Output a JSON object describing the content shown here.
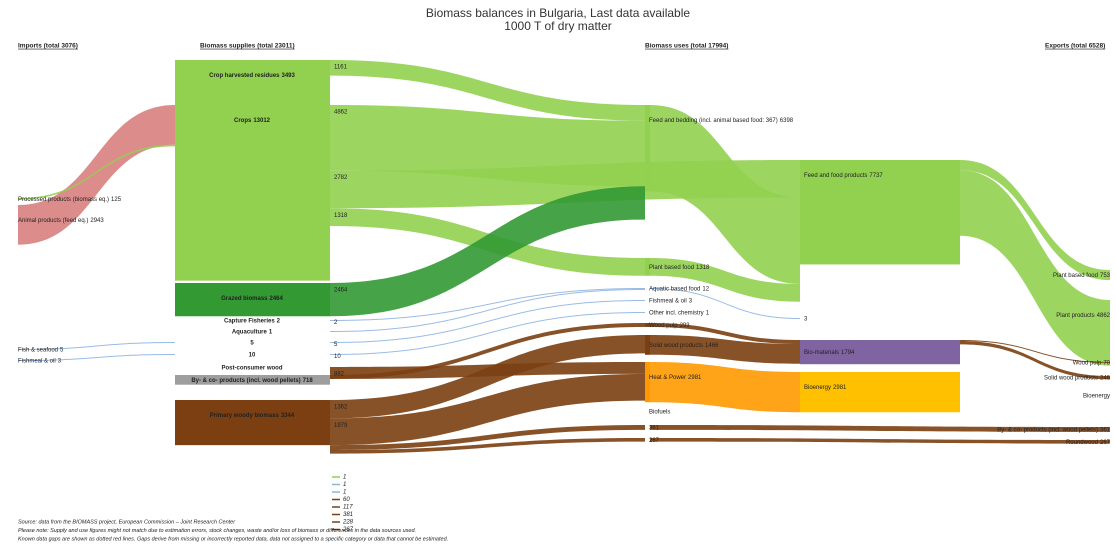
{
  "chart_data": {
    "type": "sankey",
    "title": "Biomass balances in Bulgaria, Last data available",
    "subtitle": "1000 T of dry matter",
    "columns": [
      {
        "header": "Imports (total 3076)",
        "nodes": [
          {
            "name": "Processed products (biomass eq.)",
            "value": 125
          },
          {
            "name": "Animal products (feed eq.)",
            "value": 2943
          },
          {
            "name": "Fish & seafood",
            "value": 5
          },
          {
            "name": "Fishmeal & oil",
            "value": 3
          }
        ]
      },
      {
        "header": "Biomass supplies (total 23011)",
        "nodes": [
          {
            "name": "Crop harvested residues",
            "value": 3493,
            "color": "#92d050"
          },
          {
            "name": "Crops",
            "value": 13012,
            "color": "#92d050"
          },
          {
            "name": "Grazed biomass",
            "value": 2464,
            "color": "#339933"
          },
          {
            "name": "Capture Fisheries",
            "value": 2
          },
          {
            "name": "Aquaculture",
            "value": 1
          },
          {
            "name": null,
            "value": 5
          },
          {
            "name": null,
            "value": 10
          },
          {
            "name": "Post-consumer wood",
            "value": null
          },
          {
            "name": "By- & co- products (incl. wood pellets)",
            "value": 718,
            "color": "#9e9e9e"
          },
          {
            "name": "Primary woody biomass",
            "value": 3344,
            "color": "#7b3f12"
          }
        ]
      },
      {
        "header": "Biomass uses (total 17994)",
        "nodes": [
          {
            "name": "Feed and bedding (incl. animal based food: 367)",
            "value": 6398,
            "color": "#92d050"
          },
          {
            "name": "Plant based food",
            "value": 1318,
            "color": "#92d050"
          },
          {
            "name": "Aquatic based food",
            "value": 12
          },
          {
            "name": "Fishmeal & oil",
            "value": 3
          },
          {
            "name": "Other incl. chemistry",
            "value": 1
          },
          {
            "name": "Wood pulp",
            "value": 293,
            "color": "#7b3f12"
          },
          {
            "name": "Solid wood products",
            "value": 1466,
            "color": "#7b3f12"
          },
          {
            "name": "Heat & Power",
            "value": 2981,
            "color": "#ff9900"
          },
          {
            "name": "Biofuels",
            "value": null
          },
          {
            "name": null,
            "value": 361
          },
          {
            "name": null,
            "value": 267
          }
        ]
      },
      {
        "header": null,
        "nodes": [
          {
            "name": "Feed and food products",
            "value": 7737,
            "color": "#92d050"
          },
          {
            "name": null,
            "value": 3
          },
          {
            "name": "Bio-materials",
            "value": 1794,
            "color": "#8064a2"
          },
          {
            "name": "Bioenergy",
            "value": 2981,
            "color": "#ffc000"
          }
        ]
      },
      {
        "header": "Exports (total 6528)",
        "nodes": [
          {
            "name": "Plant based food",
            "value": 753
          },
          {
            "name": "Plant products",
            "value": 4862
          },
          {
            "name": "Wood pulp",
            "value": 70
          },
          {
            "name": "Solid wood products",
            "value": 246
          },
          {
            "name": "Bioenergy",
            "value": null
          },
          {
            "name": "By- & co- products (incl. wood pellets)",
            "value": 361
          },
          {
            "name": "Roundwood",
            "value": 267
          }
        ]
      }
    ],
    "links": [
      {
        "from": [
          0,
          1
        ],
        "to": [
          1,
          1
        ],
        "value": 2943,
        "color": "#d98080"
      },
      {
        "from": [
          0,
          0
        ],
        "to": [
          1,
          1
        ],
        "value": 125,
        "color": "#92d050"
      },
      {
        "from": [
          0,
          2
        ],
        "to": [
          1,
          5
        ],
        "value": 5,
        "color": "#8eb4e3"
      },
      {
        "from": [
          0,
          3
        ],
        "to": [
          1,
          6
        ],
        "value": 3,
        "color": "#8eb4e3"
      },
      {
        "from": [
          1,
          0
        ],
        "to": [
          2,
          0
        ],
        "value": 1161,
        "color": "#92d050",
        "label": true
      },
      {
        "from": [
          1,
          1
        ],
        "to": [
          2,
          0
        ],
        "value": 4862,
        "color": "#92d050",
        "label": true
      },
      {
        "from": [
          1,
          1
        ],
        "to": [
          3,
          0
        ],
        "value": 2782,
        "color": "#92d050",
        "label": true
      },
      {
        "from": [
          1,
          1
        ],
        "to": [
          2,
          1
        ],
        "value": 1318,
        "color": "#92d050",
        "label": true
      },
      {
        "from": [
          1,
          2
        ],
        "to": [
          2,
          0
        ],
        "value": 2464,
        "color": "#339933",
        "label": true
      },
      {
        "from": [
          1,
          3
        ],
        "to": [
          2,
          2
        ],
        "value": 2,
        "color": "#8eb4e3",
        "label": true
      },
      {
        "from": [
          1,
          4
        ],
        "to": [
          2,
          2
        ],
        "value": 1,
        "color": "#8eb4e3"
      },
      {
        "from": [
          1,
          5
        ],
        "to": [
          2,
          3
        ],
        "value": 5,
        "color": "#8eb4e3",
        "label": true
      },
      {
        "from": [
          1,
          6
        ],
        "to": [
          2,
          4
        ],
        "value": 10,
        "color": "#8eb4e3",
        "label": true
      },
      {
        "from": [
          1,
          7
        ],
        "to": [
          2,
          7
        ],
        "value": 882,
        "color": "#7b3f12",
        "label": true
      },
      {
        "from": [
          1,
          8
        ],
        "to": [
          2,
          5
        ],
        "value": 293,
        "color": "#7b3f12"
      },
      {
        "from": [
          1,
          9
        ],
        "to": [
          2,
          6
        ],
        "value": 1362,
        "color": "#7b3f12",
        "label": true
      },
      {
        "from": [
          1,
          9
        ],
        "to": [
          2,
          7
        ],
        "value": 1979,
        "color": "#7b3f12",
        "label": true
      },
      {
        "from": [
          1,
          9
        ],
        "to": [
          2,
          9
        ],
        "value": 361,
        "color": "#7b3f12"
      },
      {
        "from": [
          1,
          9
        ],
        "to": [
          2,
          10
        ],
        "value": 267,
        "color": "#7b3f12"
      },
      {
        "from": [
          2,
          0
        ],
        "to": [
          3,
          0
        ],
        "value": 6398,
        "color": "#92d050"
      },
      {
        "from": [
          2,
          1
        ],
        "to": [
          3,
          0
        ],
        "value": 1318,
        "color": "#92d050"
      },
      {
        "from": [
          2,
          2
        ],
        "to": [
          3,
          1
        ],
        "value": 12,
        "color": "#8eb4e3"
      },
      {
        "from": [
          2,
          5
        ],
        "to": [
          3,
          2
        ],
        "value": 293,
        "color": "#7b3f12"
      },
      {
        "from": [
          2,
          6
        ],
        "to": [
          3,
          2
        ],
        "value": 1466,
        "color": "#7b3f12"
      },
      {
        "from": [
          2,
          7
        ],
        "to": [
          3,
          3
        ],
        "value": 2981,
        "color": "#ff9900"
      },
      {
        "from": [
          2,
          9
        ],
        "to": [
          4,
          5
        ],
        "value": 361,
        "color": "#7b3f12"
      },
      {
        "from": [
          2,
          10
        ],
        "to": [
          4,
          6
        ],
        "value": 267,
        "color": "#7b3f12"
      },
      {
        "from": [
          3,
          0
        ],
        "to": [
          4,
          0
        ],
        "value": 753,
        "color": "#92d050"
      },
      {
        "from": [
          3,
          0
        ],
        "to": [
          4,
          1
        ],
        "value": 4862,
        "color": "#92d050"
      },
      {
        "from": [
          3,
          2
        ],
        "to": [
          4,
          2
        ],
        "value": 70,
        "color": "#7b3f12"
      },
      {
        "from": [
          3,
          2
        ],
        "to": [
          4,
          3
        ],
        "value": 246,
        "color": "#7b3f12"
      }
    ],
    "small_flows": [
      {
        "value": 1,
        "color": "#92d050"
      },
      {
        "value": 1,
        "color": "#8eb4e3"
      },
      {
        "value": 1,
        "color": "#8eb4e3"
      },
      {
        "value": 60,
        "color": "#7b3f12"
      },
      {
        "value": 117,
        "color": "#7b3f12"
      },
      {
        "value": 381,
        "color": "#7b3f12"
      },
      {
        "value": 228,
        "color": "#7b3f12"
      },
      {
        "value": 267,
        "color": "#7b3f12"
      }
    ],
    "notes": [
      "Source: data from the BIOMASS project, European Commission – Joint Research Center",
      "Please note: Supply and use figures might not match due to estimation errors, stock changes, waste and/or loss of biomass or differences in the data sources used.",
      "Known data gaps are shown as dotted red lines. Gaps derive from missing or incorrectly reported data, data not assigned to a specific category or data that cannot be estimated."
    ]
  }
}
